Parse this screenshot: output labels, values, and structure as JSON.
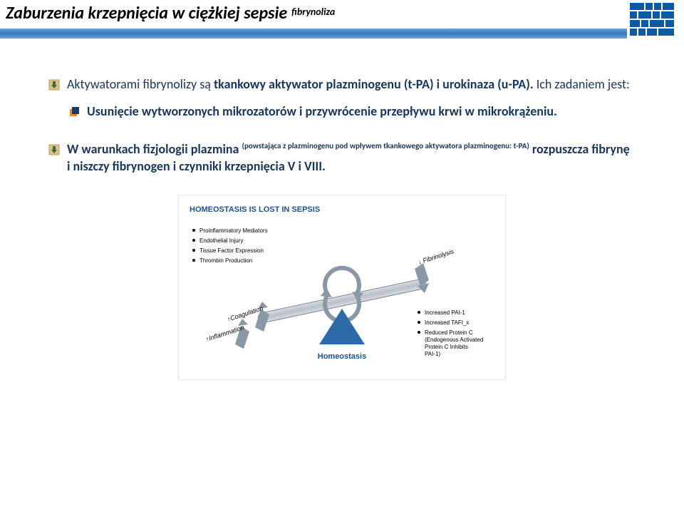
{
  "header": {
    "title_main": "Zaburzenia krzepnięcia w ciężkiej sepsie",
    "title_sup": "fibrynoliza"
  },
  "colors": {
    "text_navy": "#17365d",
    "bar_gradient_top": "#6ba3d9",
    "bar_gradient_mid": "#3a78c0",
    "header_text": "#000000",
    "logo_blue": "#0b5aa6",
    "sub_bullet_orange": "#e58a2e",
    "sub_bullet_navy": "#1b3a6b",
    "diagram_title": "#1a5296",
    "diagram_body": "#3a3a3a",
    "diagram_triangle": "#2d6aa8",
    "diagram_arrow": "#8a98a6",
    "diagram_border": "#d4d0c8"
  },
  "bullets": [
    {
      "pre": "Aktywatorami fibrynolizy są ",
      "bold": "tkankowy aktywator plazminogenu (t-PA) i urokinaza (u-PA).",
      "post": " Ich zadaniem jest:"
    }
  ],
  "sub_bullets": [
    "Usunięcie wytworzonych mikrozatorów i przywrócenie przepływu krwi w mikrokrążeniu."
  ],
  "bullet2": {
    "pre": "W warunkach fizjologii plazmina ",
    "sup1": "(powstająca z plazminogenu pod wpływem tkankowego aktywatora plazminogenu: t-PA)",
    "post": " rozpuszcza fibrynę i niszczy fibrynogen i czynniki krzepnięcia V i VIII."
  },
  "diagram": {
    "title": "HOMEOSTASIS IS LOST IN SEPSIS",
    "title_fontsize": 11,
    "title_color": "#1a5296",
    "left_list": [
      "Proinflammatory Mediators",
      "Endothelial Injury",
      "Tissue Factor Expression",
      "Thrombin Production"
    ],
    "left_arrow1": "↑Coagulation",
    "left_arrow2": "↑Inflammation",
    "right_arrow": "↓ Fibrinolysis",
    "right_list": [
      "Increased PAI-1",
      "Increased TAFI_x",
      "Reduced Protein C (Endogenous Activated Protein C Inhibits PAI-1)"
    ],
    "base_label": "Homeostasis",
    "triangle_color": "#2d6aa8",
    "arrow_color": "#8a98a6",
    "body_fontsize": 8,
    "background": "#ffffff",
    "border_color": "#d4d0c8"
  }
}
